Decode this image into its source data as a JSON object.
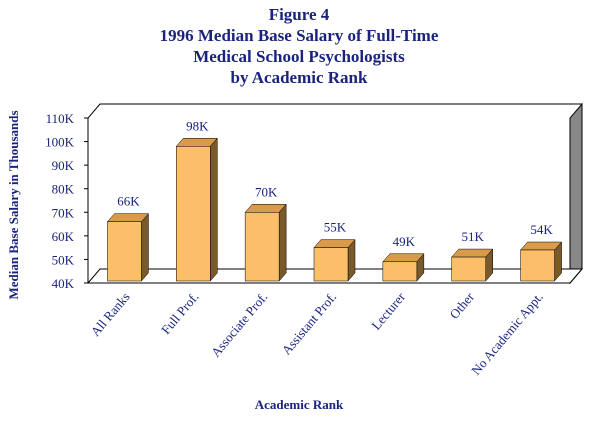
{
  "figure_label": "Figure 4",
  "title_lines": [
    "1996 Median Base Salary of Full-Time",
    "Medical School Psychologists",
    "by Academic Rank"
  ],
  "colors": {
    "text": "#1a237e",
    "bar_front": "#fbbf6a",
    "bar_top": "#d99a4a",
    "bar_side": "#7a5a2a",
    "wall_side": "#888888"
  },
  "chart_data": {
    "type": "bar",
    "title": "1996 Median Base Salary of Full-Time Medical School Psychologists by Academic Rank",
    "xlabel": "Academic Rank",
    "ylabel": "Median Base Salary in Thousands",
    "categories": [
      "All Ranks",
      "Full Prof.",
      "Associate Prof.",
      "Assistant Prof.",
      "Lecturer",
      "Other",
      "No Academic Appt."
    ],
    "values": [
      66,
      98,
      70,
      55,
      49,
      51,
      54
    ],
    "data_labels": [
      "66K",
      "98K",
      "70K",
      "55K",
      "49K",
      "51K",
      "54K"
    ],
    "ylim": [
      40,
      110
    ],
    "yticks": [
      40,
      50,
      60,
      70,
      80,
      90,
      100,
      110
    ],
    "ytick_labels": [
      "40K",
      "50K",
      "60K",
      "70K",
      "80K",
      "90K",
      "100K",
      "110K"
    ],
    "grid": false,
    "legend": "none"
  }
}
